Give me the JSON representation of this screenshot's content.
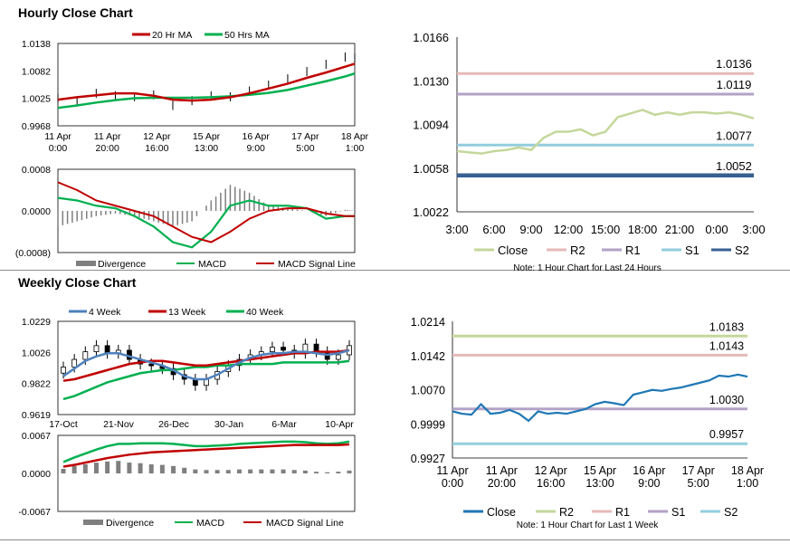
{
  "sections": {
    "hourly_title": "Hourly Close Chart",
    "weekly_title": "Weekly Close Chart"
  },
  "colors": {
    "close_green": "#c4d79b",
    "r2": "#e6b9b8",
    "r1": "#b3a2c7",
    "s1": "#93cddd",
    "s2": "#376092",
    "ma_red": "#c00000",
    "ma_green": "#00b050",
    "ma_blue": "#4f81bd",
    "divergence": "#7f7f7f",
    "weekly_close": "#1f77b4",
    "w_r2": "#c4d79b",
    "w_r1": "#e6b9b8",
    "w_s1": "#b3a2c7",
    "w_s2": "#93cddd"
  },
  "chart_data": [
    {
      "id": "hourly-price-ma",
      "type": "line",
      "legend": [
        "20 Hr MA",
        "50 Hrs MA"
      ],
      "yticks": [
        "1.0138",
        "1.0082",
        "1.0025",
        "0.9968"
      ],
      "ylim": [
        0.9968,
        1.0138
      ],
      "xticks": [
        [
          "11 Apr",
          "0:00"
        ],
        [
          "11 Apr",
          "20:00"
        ],
        [
          "12 Apr",
          "16:00"
        ],
        [
          "15 Apr",
          "13:00"
        ],
        [
          "16 Apr",
          "9:00"
        ],
        [
          "17 Apr",
          "5:00"
        ],
        [
          "18 Apr",
          "1:00"
        ]
      ],
      "x": [
        0,
        8,
        16,
        24,
        32,
        40,
        48,
        56,
        64,
        72,
        80,
        88,
        96,
        104,
        112,
        120,
        124
      ],
      "price": [
        1.0025,
        1.002,
        1.0035,
        1.003,
        1.0028,
        1.0032,
        1.001,
        1.002,
        1.003,
        1.0028,
        1.004,
        1.0052,
        1.0065,
        1.008,
        1.0095,
        1.011,
        1.0108
      ],
      "series": [
        {
          "name": "20 Hr MA",
          "values": [
            1.0022,
            1.0027,
            1.0031,
            1.0035,
            1.0035,
            1.003,
            1.0022,
            1.002,
            1.0022,
            1.0027,
            1.0035,
            1.0045,
            1.0055,
            1.0067,
            1.0078,
            1.009,
            1.0096
          ]
        },
        {
          "name": "50 Hrs MA",
          "values": [
            1.0005,
            1.001,
            1.0016,
            1.0021,
            1.0025,
            1.0026,
            1.0026,
            1.0026,
            1.0027,
            1.0029,
            1.0032,
            1.0036,
            1.0042,
            1.0051,
            1.006,
            1.007,
            1.0076
          ]
        }
      ]
    },
    {
      "id": "hourly-macd",
      "type": "line",
      "yticks": [
        "0.0008",
        "0.0000",
        "(0.0008)"
      ],
      "ylim": [
        -0.0008,
        0.0008
      ],
      "legend": [
        "Divergence",
        "MACD",
        "MACD Signal Line"
      ],
      "x": [
        0,
        8,
        16,
        24,
        32,
        40,
        48,
        56,
        64,
        72,
        80,
        88,
        96,
        104,
        112,
        120,
        124
      ],
      "series": [
        {
          "name": "MACD",
          "values": [
            0.00025,
            0.0002,
            0.0001,
            5e-05,
            -0.0001,
            -0.0003,
            -0.0006,
            -0.0007,
            -0.0004,
            0.0001,
            0.0002,
            0.0001,
            0.0001,
            5e-05,
            -0.00015,
            -0.0001,
            -0.0001
          ]
        },
        {
          "name": "MACD Signal Line",
          "values": [
            0.00055,
            0.0004,
            0.0002,
            0.0001,
            0.0,
            -0.0001,
            -0.0003,
            -0.0005,
            -0.0006,
            -0.0004,
            -0.00015,
            0.0,
            5e-05,
            5e-05,
            -5e-05,
            -0.0001,
            -0.0001
          ]
        }
      ],
      "divergence": [
        -0.0003,
        -0.0002,
        -0.0001,
        -5e-05,
        -0.0001,
        -0.0002,
        -0.0003,
        -0.0002,
        0.0002,
        0.0005,
        0.00035,
        0.0001,
        5e-05,
        0.0,
        -0.0001,
        2e-05,
        0.0
      ]
    },
    {
      "id": "hourly-sr",
      "type": "line",
      "yticks": [
        "1.0166",
        "1.0130",
        "1.0094",
        "1.0058",
        "1.0022"
      ],
      "ylim": [
        1.0022,
        1.0166
      ],
      "xticks": [
        "3:00",
        "6:00",
        "9:00",
        "12:00",
        "15:00",
        "18:00",
        "21:00",
        "0:00",
        "3:00"
      ],
      "x": [
        0,
        1,
        2,
        3,
        4,
        5,
        6,
        7,
        8,
        9,
        10,
        11,
        12,
        13,
        14,
        15,
        16,
        17,
        18,
        19,
        20,
        21,
        22,
        23,
        24
      ],
      "values": [
        1.0072,
        1.0071,
        1.007,
        1.0072,
        1.0073,
        1.0075,
        1.0073,
        1.0083,
        1.0088,
        1.0088,
        1.009,
        1.0085,
        1.0088,
        1.01,
        1.0103,
        1.0106,
        1.0102,
        1.0104,
        1.0102,
        1.0104,
        1.0104,
        1.0103,
        1.0104,
        1.0102,
        1.0099
      ],
      "levels": [
        {
          "name": "R2",
          "value": 1.0136,
          "label": "1.0136"
        },
        {
          "name": "R1",
          "value": 1.0119,
          "label": "1.0119"
        },
        {
          "name": "S1",
          "value": 1.0077,
          "label": "1.0077"
        },
        {
          "name": "S2",
          "value": 1.0052,
          "label": "1.0052"
        }
      ],
      "legend": [
        "Close",
        "R2",
        "R1",
        "S1",
        "S2"
      ],
      "note": "Note: 1 Hour Chart for Last 24 Hours"
    },
    {
      "id": "weekly-price-ma",
      "type": "line",
      "legend": [
        "4 Week",
        "13 Week",
        "40 Week"
      ],
      "yticks": [
        "1.0229",
        "1.0026",
        "0.9822",
        "0.9619"
      ],
      "ylim": [
        0.9619,
        1.0229
      ],
      "xticks": [
        "17-Oct",
        "21-Nov",
        "26-Dec",
        "30-Jan",
        "6-Mar",
        "10-Apr"
      ],
      "x": [
        0,
        1,
        2,
        3,
        4,
        5,
        6,
        7,
        8,
        9,
        10,
        11,
        12,
        13,
        14,
        15,
        16,
        17,
        18,
        19,
        20,
        21,
        22,
        23,
        24,
        25,
        26
      ],
      "close": [
        0.993,
        0.998,
        1.003,
        1.007,
        1.002,
        1.004,
        0.998,
        0.995,
        0.994,
        0.992,
        0.988,
        0.985,
        0.981,
        0.985,
        0.99,
        0.994,
        0.998,
        1.001,
        1.003,
        1.006,
        1.004,
        1.002,
        1.008,
        1.003,
        0.998,
        1.001,
        1.007
      ],
      "series": [
        {
          "name": "4 Week",
          "values": [
            0.987,
            0.992,
            0.997,
            1.0,
            1.002,
            1.002,
            1.0,
            0.998,
            0.996,
            0.994,
            0.991,
            0.987,
            0.985,
            0.985,
            0.988,
            0.992,
            0.996,
            0.999,
            1.001,
            1.002,
            1.002,
            1.003,
            1.003,
            1.002,
            1.001,
            1.002,
            1.004
          ]
        },
        {
          "name": "13 Week",
          "values": [
            0.984,
            0.985,
            0.987,
            0.989,
            0.991,
            0.993,
            0.995,
            0.996,
            0.997,
            0.997,
            0.996,
            0.995,
            0.994,
            0.994,
            0.995,
            0.996,
            0.997,
            0.998,
            0.999,
            1.0,
            1.001,
            1.002,
            1.002,
            1.003,
            1.003,
            1.003,
            1.004
          ]
        },
        {
          "name": "40 Week",
          "values": [
            0.972,
            0.974,
            0.977,
            0.98,
            0.983,
            0.985,
            0.987,
            0.989,
            0.99,
            0.991,
            0.991,
            0.992,
            0.993,
            0.993,
            0.994,
            0.994,
            0.995,
            0.995,
            0.995,
            0.995,
            0.996,
            0.996,
            0.996,
            0.996,
            0.996,
            0.996,
            0.997
          ]
        }
      ]
    },
    {
      "id": "weekly-macd",
      "type": "line",
      "yticks": [
        "0.0067",
        "0.0000",
        "-0.0067"
      ],
      "ylim": [
        -0.0067,
        0.0067
      ],
      "legend": [
        "Divergence",
        "MACD",
        "MACD Signal Line"
      ],
      "x": [
        0,
        1,
        2,
        3,
        4,
        5,
        6,
        7,
        8,
        9,
        10,
        11,
        12,
        13,
        14,
        15,
        16,
        17,
        18,
        19,
        20,
        21,
        22,
        23,
        24,
        25,
        26
      ],
      "series": [
        {
          "name": "MACD",
          "values": [
            0.002,
            0.0028,
            0.0035,
            0.0042,
            0.0048,
            0.0052,
            0.0052,
            0.0053,
            0.0053,
            0.0053,
            0.0052,
            0.005,
            0.0048,
            0.0048,
            0.0049,
            0.005,
            0.0052,
            0.0053,
            0.0054,
            0.0055,
            0.0056,
            0.0056,
            0.0055,
            0.0053,
            0.0052,
            0.0053,
            0.0056
          ]
        },
        {
          "name": "MACD Signal Line",
          "values": [
            0.0012,
            0.0015,
            0.0019,
            0.0023,
            0.0027,
            0.003,
            0.0033,
            0.0035,
            0.0037,
            0.0038,
            0.0039,
            0.004,
            0.0041,
            0.0042,
            0.0043,
            0.0044,
            0.0045,
            0.0046,
            0.0047,
            0.0048,
            0.0049,
            0.005,
            0.005,
            0.005,
            0.005,
            0.005,
            0.0051
          ]
        }
      ],
      "divergence": [
        0.0008,
        0.0013,
        0.0016,
        0.0019,
        0.0021,
        0.0022,
        0.0019,
        0.0018,
        0.0016,
        0.0015,
        0.0013,
        0.001,
        0.0007,
        0.0006,
        0.0006,
        0.0006,
        0.0007,
        0.0007,
        0.0007,
        0.0007,
        0.0007,
        0.0006,
        0.0005,
        0.0003,
        0.0002,
        0.0003,
        0.0005
      ]
    },
    {
      "id": "weekly-sr",
      "type": "line",
      "yticks": [
        "1.0214",
        "1.0142",
        "1.0070",
        "0.9999",
        "0.9927"
      ],
      "ylim": [
        0.9927,
        1.0214
      ],
      "xticks": [
        [
          "11 Apr",
          "0:00"
        ],
        [
          "11 Apr",
          "20:00"
        ],
        [
          "12 Apr",
          "16:00"
        ],
        [
          "15 Apr",
          "13:00"
        ],
        [
          "16 Apr",
          "9:00"
        ],
        [
          "17 Apr",
          "5:00"
        ],
        [
          "18 Apr",
          "1:00"
        ]
      ],
      "x": [
        0,
        4,
        8,
        12,
        16,
        20,
        24,
        28,
        32,
        36,
        40,
        44,
        48,
        52,
        56,
        60,
        64,
        68,
        72,
        76,
        80,
        84,
        88,
        92,
        96,
        100,
        104,
        108,
        112,
        116,
        120,
        124
      ],
      "values": [
        1.0025,
        1.002,
        1.0018,
        1.004,
        1.002,
        1.0022,
        1.0028,
        1.002,
        1.0005,
        1.0025,
        1.002,
        1.0022,
        1.002,
        1.0025,
        1.003,
        1.004,
        1.0045,
        1.0042,
        1.0038,
        1.006,
        1.0065,
        1.007,
        1.0068,
        1.0072,
        1.0075,
        1.008,
        1.0085,
        1.009,
        1.01,
        1.0098,
        1.0102,
        1.0098
      ],
      "levels": [
        {
          "name": "R2",
          "value": 1.0183,
          "label": "1.0183"
        },
        {
          "name": "R1",
          "value": 1.0143,
          "label": "1.0143"
        },
        {
          "name": "S1",
          "value": 1.003,
          "label": "1.0030"
        },
        {
          "name": "S2",
          "value": 0.9957,
          "label": "0.9957"
        }
      ],
      "legend": [
        "Close",
        "R2",
        "R1",
        "S1",
        "S2"
      ],
      "note": "Note: 1 Hour Chart for Last 1 Week"
    }
  ]
}
